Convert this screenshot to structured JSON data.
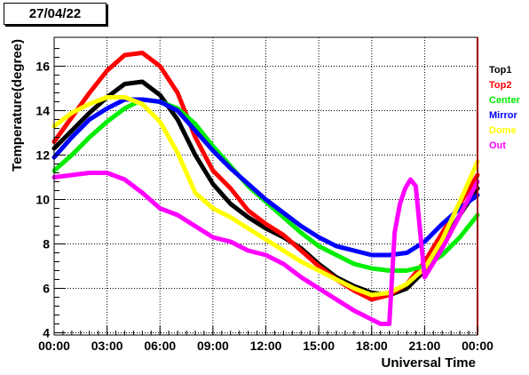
{
  "date_stamp": "27/04/22",
  "chart_data": {
    "type": "scatter",
    "title": "",
    "xlabel": "Universal Time",
    "ylabel": "Temperature(degree)",
    "xlim": [
      0,
      24
    ],
    "ylim": [
      3.9,
      17.3
    ],
    "grid": true,
    "legend_position": "right",
    "x_ticks": [
      0,
      3,
      6,
      9,
      12,
      15,
      18,
      21,
      24
    ],
    "x_tick_labels": [
      "00:00",
      "03:00",
      "06:00",
      "09:00",
      "12:00",
      "15:00",
      "18:00",
      "21:00",
      "00:00"
    ],
    "y_ticks": [
      4,
      6,
      8,
      10,
      12,
      14,
      16
    ],
    "y_tick_labels": [
      "4",
      "6",
      "8",
      "10",
      "12",
      "14",
      "16"
    ],
    "series": [
      {
        "name": "Top1",
        "color": "#000000",
        "x": [
          0,
          1,
          2,
          3,
          4,
          5,
          6,
          7,
          8,
          9,
          10,
          11,
          12,
          13,
          14,
          15,
          16,
          17,
          18,
          19,
          20,
          21,
          22,
          23,
          24
        ],
        "y": [
          12.3,
          13.1,
          13.9,
          14.6,
          15.2,
          15.3,
          14.7,
          13.6,
          12.0,
          10.7,
          9.8,
          9.2,
          8.7,
          8.3,
          7.8,
          7.1,
          6.5,
          6.1,
          5.8,
          5.7,
          6.0,
          6.8,
          8.0,
          9.3,
          10.5
        ]
      },
      {
        "name": "Top2",
        "color": "#ff0000",
        "x": [
          0,
          1,
          2,
          3,
          4,
          5,
          6,
          7,
          8,
          9,
          10,
          11,
          12,
          13,
          14,
          15,
          16,
          17,
          18,
          19,
          20,
          21,
          22,
          23,
          24
        ],
        "y": [
          12.6,
          13.7,
          14.8,
          15.8,
          16.5,
          16.6,
          16.0,
          14.8,
          12.8,
          11.3,
          10.5,
          9.5,
          8.9,
          8.4,
          7.7,
          7.0,
          6.4,
          5.9,
          5.5,
          5.7,
          6.2,
          7.2,
          8.5,
          9.8,
          11.1
        ]
      },
      {
        "name": "Center",
        "color": "#00ee00",
        "x": [
          0,
          1,
          2,
          3,
          4,
          5,
          6,
          7,
          8,
          9,
          10,
          11,
          12,
          13,
          14,
          15,
          16,
          17,
          18,
          19,
          20,
          21,
          22,
          23,
          24
        ],
        "y": [
          11.3,
          12.0,
          12.8,
          13.5,
          14.1,
          14.5,
          14.4,
          14.1,
          13.4,
          12.4,
          11.5,
          10.6,
          9.9,
          9.2,
          8.5,
          7.9,
          7.5,
          7.1,
          6.9,
          6.8,
          6.8,
          7.0,
          7.5,
          8.3,
          9.3
        ]
      },
      {
        "name": "Mirror",
        "color": "#0000ff",
        "x": [
          0,
          1,
          2,
          3,
          4,
          5,
          6,
          7,
          8,
          9,
          10,
          11,
          12,
          13,
          14,
          15,
          16,
          17,
          18,
          19,
          20,
          21,
          22,
          23,
          24
        ],
        "y": [
          11.9,
          12.8,
          13.6,
          14.1,
          14.5,
          14.5,
          14.4,
          14.0,
          13.1,
          12.2,
          11.4,
          10.7,
          10.0,
          9.4,
          8.8,
          8.3,
          7.9,
          7.7,
          7.5,
          7.5,
          7.6,
          8.1,
          8.9,
          9.6,
          10.2
        ]
      },
      {
        "name": "Dome",
        "color": "#ffff00",
        "x": [
          0,
          1,
          2,
          3,
          4,
          5,
          6,
          7,
          8,
          9,
          10,
          11,
          12,
          13,
          14,
          15,
          16,
          17,
          18,
          19,
          20,
          21,
          22,
          23,
          24
        ],
        "y": [
          13.3,
          13.9,
          14.3,
          14.6,
          14.6,
          14.3,
          13.5,
          12.1,
          10.3,
          9.6,
          9.2,
          8.7,
          8.2,
          7.7,
          7.2,
          6.8,
          6.4,
          6.0,
          5.7,
          5.8,
          6.2,
          6.9,
          8.2,
          9.9,
          11.7
        ]
      },
      {
        "name": "Out",
        "color": "#ff00ff",
        "x": [
          0,
          1,
          2,
          3,
          4,
          5,
          6,
          7,
          8,
          9,
          10,
          11,
          12,
          13,
          14,
          15,
          16,
          17,
          18,
          18.5,
          19,
          19.3,
          19.6,
          19.9,
          20.2,
          20.5,
          21,
          22,
          23,
          24
        ],
        "y": [
          11.0,
          11.1,
          11.2,
          11.2,
          10.9,
          10.3,
          9.6,
          9.3,
          8.8,
          8.3,
          8.1,
          7.7,
          7.5,
          7.1,
          6.5,
          6.0,
          5.5,
          5.0,
          4.6,
          4.4,
          4.4,
          8.5,
          9.8,
          10.5,
          10.9,
          10.6,
          6.5,
          7.8,
          9.3,
          10.8
        ]
      }
    ]
  }
}
